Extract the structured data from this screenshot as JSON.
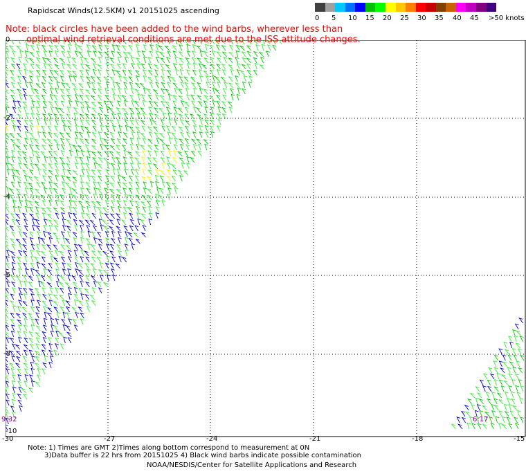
{
  "header": {
    "title": "Rapidscat Winds(12.5KM) v1 20151025 ascending",
    "note_line1": "Note: black circles have been added to the wind barbs, wherever less than",
    "note_line2": "optimal wind retrieval conditions are met due to the ISS attitude changes."
  },
  "colorbar": {
    "colors": [
      "#404040",
      "#a0a0a0",
      "#00c8ff",
      "#0070ff",
      "#0000ff",
      "#00c000",
      "#00ff00",
      "#ffff00",
      "#ffc800",
      "#ff8000",
      "#ff0000",
      "#c80000",
      "#804000",
      "#c86400",
      "#ff00ff",
      "#c000c0",
      "#800080",
      "#400080"
    ],
    "labels": [
      "0",
      "5",
      "10",
      "15",
      "20",
      "25",
      "30",
      "35",
      "40",
      "45",
      ">50 knots"
    ]
  },
  "map": {
    "lat_labels": [
      "0",
      "-2",
      "-4",
      "-6",
      "-8",
      "-10"
    ],
    "lon_labels": [
      "-30",
      "-27",
      "-24",
      "-21",
      "-18",
      "-15"
    ],
    "time_labels": [
      "9:32",
      "6:17"
    ]
  },
  "footer": {
    "line1": "Note: 1) Times are GMT 2)Times along bottom correspond to measurement at 0N",
    "line2": "3)Data buffer is 22 hrs from 20151025 4) Black wind barbs indicate possible contamination",
    "line3": "NOAA/NESDIS/Center for Satellite Applications and Research"
  }
}
